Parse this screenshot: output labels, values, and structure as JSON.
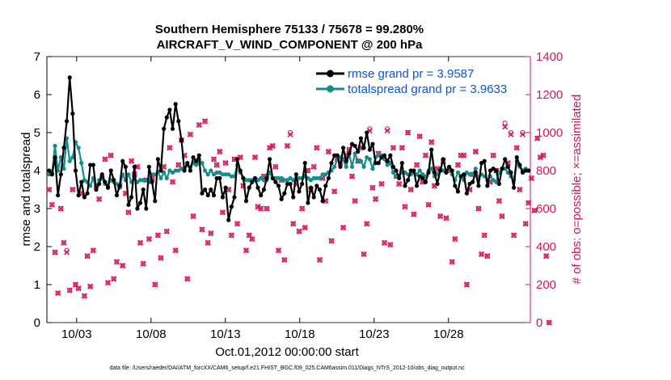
{
  "chart_data": {
    "type": "line",
    "title_line1": "Southern Hemisphere 75133 / 75678 = 99.280%",
    "title_line2": "AIRCRAFT_V_WIND_COMPONENT @ 200 hPa",
    "xlabel": "Oct.01,2012 00:00:00 start",
    "ylabel_left": "rmse and totalspread",
    "ylabel_right": "# of obs: o=possible; ×=assimilated",
    "footnote": "data file: /Users/raeder/DAI/ATM_forcXX/CAM6_setup/f.e21.FHIST_BGC.f09_025.CAM6assim.011/Diags_NTrS_2012-10/obs_diag_output.nc",
    "xlim": [
      1,
      33.5
    ],
    "ylim_left": [
      0,
      7
    ],
    "ylim_right": [
      0,
      1400
    ],
    "x_ticks": [
      3,
      8,
      13,
      18,
      23,
      28
    ],
    "x_tick_labels": [
      "10/03",
      "10/08",
      "10/13",
      "10/18",
      "10/23",
      "10/28"
    ],
    "y_ticks_left": [
      "0",
      "1",
      "2",
      "3",
      "4",
      "5",
      "6",
      "7"
    ],
    "y_ticks_right": [
      "0",
      "200",
      "400",
      "600",
      "800",
      "1000",
      "1200",
      "1400"
    ],
    "colors": {
      "rmse": "#000000",
      "spread": "#168c8c",
      "obs": "#d6145a",
      "legend_text": "#0a55d6"
    },
    "series": [
      {
        "name": "rmse grand pr = 3.9587",
        "values": [
          4.0,
          3.9,
          4.35,
          3.35,
          3.9,
          4.6,
          5.3,
          6.45,
          5.5,
          4.0,
          3.35,
          3.7,
          3.3,
          3.4,
          4.15,
          4.15,
          3.5,
          3.65,
          3.9,
          3.7,
          3.55,
          4.0,
          3.75,
          3.35,
          3.6,
          4.25,
          4.1,
          3.1,
          3.3,
          4.1,
          3.0,
          3.15,
          3.5,
          3.0,
          4.1,
          3.7,
          3.2,
          4.3,
          4.0,
          5.1,
          5.4,
          5.6,
          5.1,
          5.75,
          5.3,
          4.8,
          4.0,
          4.2,
          4.0,
          4.35,
          4.25,
          4.4,
          3.4,
          3.5,
          3.35,
          3.5,
          3.35,
          3.8,
          3.8,
          3.3,
          3.55,
          2.7,
          3.05,
          3.3,
          4.3,
          4.0,
          3.8,
          3.2,
          3.55,
          3.7,
          3.8,
          3.55,
          3.35,
          3.5,
          3.8,
          4.3,
          3.8,
          3.7,
          3.6,
          3.25,
          3.4,
          3.65,
          3.65,
          3.3,
          3.9,
          3.45,
          3.65,
          4.2,
          3.15,
          3.55,
          3.3,
          3.6,
          3.5,
          3.2,
          3.6,
          3.8,
          4.2,
          4.4,
          4.4,
          4.1,
          4.6,
          4.25,
          4.45,
          4.7,
          4.65,
          4.5,
          4.85,
          4.6,
          5.0,
          4.55,
          4.7,
          4.2,
          4.2,
          4.35,
          4.4,
          4.25,
          4.4,
          4.1,
          4.0,
          3.8,
          4.2,
          3.6,
          3.75,
          4.0,
          4.0,
          3.6,
          3.85,
          3.8,
          3.7,
          3.95,
          4.55,
          3.95,
          3.65,
          4.0,
          4.3,
          3.95,
          4.1,
          4.0,
          3.6,
          3.45,
          3.85,
          3.9,
          3.4,
          3.65,
          3.7,
          3.95,
          3.6,
          4.2,
          4.25,
          3.6,
          4.0,
          4.05,
          4.0,
          3.65,
          4.05,
          4.3,
          4.1,
          3.95,
          3.55,
          4.35,
          4.15,
          3.95,
          4.0,
          4.0
        ]
      },
      {
        "name": "totalspread grand pr = 3.9633",
        "values": [
          3.9,
          3.95,
          4.65,
          4.0,
          4.35,
          4.05,
          4.85,
          4.25,
          4.35,
          4.75,
          4.6,
          4.2,
          3.75,
          3.7,
          3.6,
          3.8,
          3.5,
          3.75,
          3.8,
          3.65,
          3.6,
          3.75,
          3.7,
          3.65,
          3.55,
          3.9,
          3.75,
          3.9,
          3.7,
          3.8,
          3.7,
          3.75,
          3.75,
          3.75,
          3.7,
          3.9,
          3.9,
          3.95,
          3.8,
          3.95,
          3.8,
          4.0,
          3.95,
          4.0,
          4.0,
          4.05,
          4.05,
          4.15,
          4.1,
          4.2,
          4.15,
          4.3,
          4.2,
          4.0,
          3.9,
          4.0,
          3.9,
          3.95,
          3.95,
          3.9,
          3.9,
          3.9,
          3.85,
          3.85,
          4.15,
          3.95,
          3.8,
          3.75,
          3.75,
          3.75,
          3.75,
          3.75,
          3.8,
          3.75,
          3.75,
          3.95,
          3.8,
          3.8,
          3.8,
          3.8,
          3.75,
          3.75,
          3.8,
          3.75,
          3.8,
          3.8,
          3.8,
          3.85,
          3.8,
          3.75,
          3.8,
          3.8,
          3.8,
          3.9,
          3.9,
          3.95,
          4.0,
          4.1,
          4.3,
          4.35,
          4.3,
          4.1,
          4.45,
          4.1,
          4.45,
          4.25,
          4.25,
          4.1,
          4.35,
          4.3,
          4.05,
          4.35,
          4.4,
          4.4,
          4.3,
          4.15,
          4.2,
          3.95,
          3.85,
          3.85,
          3.95,
          3.95,
          3.9,
          3.9,
          3.95,
          3.9,
          4.0,
          3.9,
          3.85,
          4.0,
          4.05,
          3.85,
          3.9,
          4.05,
          4.0,
          4.0,
          4.1,
          3.9,
          3.75,
          3.95,
          3.85,
          3.75,
          3.95,
          3.9,
          3.9,
          4.05,
          3.8,
          3.9,
          3.85,
          3.75,
          3.85,
          3.75,
          3.7,
          3.95,
          4.05,
          4.05,
          3.95,
          3.85,
          3.75,
          4.25,
          4.1,
          4.0,
          4.05,
          4.0
        ]
      },
      {
        "name": "obs_possible",
        "values": [
          700,
          620,
          370,
          155,
          600,
          420,
          380,
          170,
          700,
          200,
          180,
          680,
          140,
          350,
          190,
          380,
          720,
          650,
          760,
          860,
          210,
          880,
          230,
          320,
          720,
          300,
          680,
          580,
          850,
          780,
          820,
          420,
          310,
          750,
          440,
          760,
          200,
          460,
          340,
          820,
          480,
          920,
          740,
          380,
          830,
          960,
          880,
          230,
          990,
          560,
          840,
          1040,
          490,
          1060,
          420,
          470,
          860,
          830,
          900,
          580,
          840,
          700,
          460,
          860,
          520,
          870,
          720,
          380,
          460,
          440,
          870,
          610,
          600,
          770,
          600,
          920,
          930,
          820,
          380,
          750,
          330,
          930,
          1000,
          520,
          730,
          480,
          600,
          500,
          800,
          700,
          820,
          920,
          330,
          760,
          640,
          900,
          430,
          690,
          860,
          840,
          500,
          880,
          910,
          770,
          640,
          850,
          920,
          360,
          520,
          1020,
          710,
          650,
          890,
          730,
          420,
          1020,
          410,
          920,
          770,
          730,
          920,
          610,
          1000,
          700,
          570,
          830,
          980,
          740,
          880,
          620,
          950,
          720,
          810,
          560,
          850,
          550,
          800,
          320,
          440,
          830,
          880,
          880,
          200,
          700,
          780,
          900,
          600,
          360,
          460,
          350,
          740,
          880,
          800,
          640,
          560,
          1050,
          840,
          1000,
          460,
          920,
          700,
          1000,
          520,
          630,
          760,
          590,
          970,
          870,
          880,
          350,
          0
        ]
      },
      {
        "name": "obs_assimilated",
        "values": [
          700,
          620,
          370,
          155,
          600,
          420,
          370,
          170,
          700,
          200,
          180,
          680,
          140,
          350,
          190,
          380,
          720,
          650,
          760,
          860,
          210,
          880,
          230,
          320,
          720,
          300,
          680,
          580,
          850,
          780,
          820,
          420,
          310,
          750,
          440,
          760,
          200,
          460,
          340,
          820,
          480,
          920,
          740,
          380,
          830,
          960,
          880,
          230,
          990,
          560,
          840,
          1040,
          490,
          1060,
          420,
          470,
          860,
          830,
          900,
          580,
          840,
          700,
          460,
          860,
          520,
          870,
          720,
          380,
          460,
          440,
          870,
          610,
          600,
          770,
          600,
          920,
          930,
          820,
          380,
          750,
          330,
          930,
          990,
          520,
          730,
          480,
          600,
          500,
          800,
          700,
          820,
          920,
          330,
          760,
          640,
          900,
          430,
          690,
          860,
          840,
          500,
          880,
          910,
          770,
          640,
          850,
          920,
          360,
          520,
          1010,
          710,
          650,
          890,
          730,
          420,
          1010,
          410,
          920,
          770,
          730,
          920,
          610,
          1000,
          700,
          570,
          830,
          980,
          740,
          880,
          620,
          950,
          720,
          810,
          560,
          850,
          550,
          800,
          320,
          440,
          830,
          880,
          880,
          200,
          700,
          780,
          900,
          600,
          360,
          460,
          350,
          740,
          880,
          800,
          640,
          560,
          1030,
          840,
          990,
          460,
          920,
          700,
          990,
          520,
          630,
          760,
          590,
          970,
          870,
          880,
          350,
          0
        ]
      }
    ]
  }
}
